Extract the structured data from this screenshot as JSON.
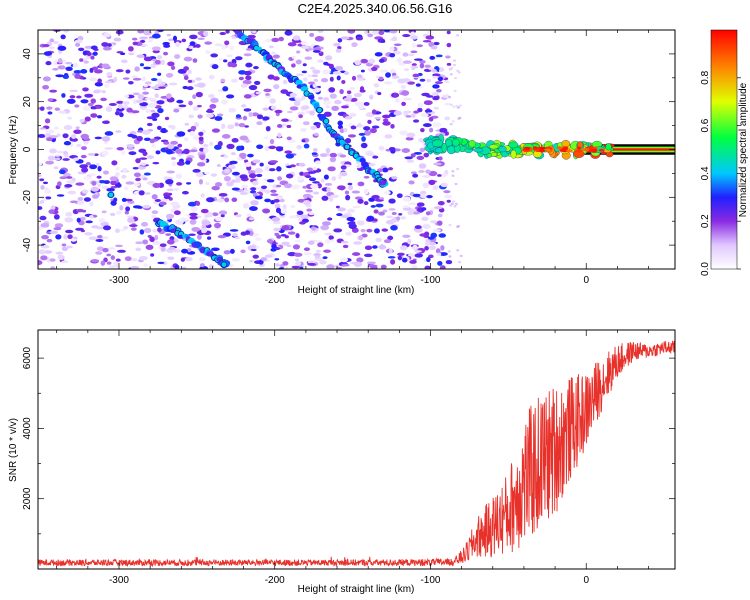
{
  "title": "C2E4.2025.340.06.56.G16",
  "chart_data": [
    {
      "type": "heatmap",
      "name": "spectrogram",
      "title": "C2E4.2025.340.06.56.G16",
      "xlabel": "Height of straight line (km)",
      "ylabel": "Frequency (Hz)",
      "xlim": [
        -352,
        57
      ],
      "ylim": [
        -50,
        50
      ],
      "xticks": [
        -300,
        -200,
        -100,
        0
      ],
      "yticks": [
        -40,
        -20,
        0,
        20,
        40
      ],
      "noise_region_x": [
        -352,
        -88
      ],
      "features": [
        {
          "name": "descending-trace-1",
          "points": [
            [
              -225,
              50
            ],
            [
              -210,
              42
            ],
            [
              -195,
              33
            ],
            [
              -180,
              25
            ],
            [
              -165,
              9
            ],
            [
              -155,
              2
            ],
            [
              -140,
              -8
            ],
            [
              -130,
              -14
            ]
          ]
        },
        {
          "name": "descending-trace-2",
          "points": [
            [
              -275,
              -30
            ],
            [
              -262,
              -35
            ],
            [
              -245,
              -42
            ],
            [
              -232,
              -48
            ]
          ]
        },
        {
          "name": "isolated-blob",
          "points": [
            [
              -305,
              -19
            ]
          ]
        },
        {
          "name": "carrier-line",
          "points": [
            [
              -100,
              3
            ],
            [
              -80,
              2
            ],
            [
              -60,
              0
            ],
            [
              -40,
              -1
            ],
            [
              -20,
              0
            ],
            [
              0,
              0
            ],
            [
              20,
              1
            ],
            [
              57,
              0
            ]
          ]
        }
      ],
      "colorbar": {
        "label": "Normalized spectral amplitude",
        "range": [
          0,
          1
        ],
        "ticks": [
          0.0,
          0.2,
          0.4,
          0.6,
          0.8
        ],
        "tick_labels": [
          "0.0",
          "0.2",
          "0.4",
          "0.6",
          "0.8"
        ],
        "stops": [
          {
            "value": 0.0,
            "color": "#ffffff"
          },
          {
            "value": 0.1,
            "color": "#e0c8ff"
          },
          {
            "value": 0.2,
            "color": "#8a2be2"
          },
          {
            "value": 0.3,
            "color": "#2020ff"
          },
          {
            "value": 0.4,
            "color": "#00c8ff"
          },
          {
            "value": 0.55,
            "color": "#00ff40"
          },
          {
            "value": 0.7,
            "color": "#e0ff00"
          },
          {
            "value": 0.85,
            "color": "#ff8000"
          },
          {
            "value": 1.0,
            "color": "#ff0000"
          }
        ]
      }
    },
    {
      "type": "line",
      "name": "snr",
      "xlabel": "Height of straight line (km)",
      "ylabel": "SNR (10 * v/v)",
      "xlim": [
        -352,
        57
      ],
      "ylim": [
        0,
        6800
      ],
      "xticks": [
        -300,
        -200,
        -100,
        0
      ],
      "yticks": [
        2000,
        4000,
        6000
      ],
      "series": [
        {
          "name": "SNR",
          "color": "#e8312b",
          "x": [
            -352,
            -300,
            -250,
            -200,
            -150,
            -100,
            -85,
            -78,
            -70,
            -60,
            -50,
            -40,
            -30,
            -20,
            -10,
            0,
            10,
            20,
            30,
            40,
            50,
            57
          ],
          "mean": [
            180,
            180,
            180,
            180,
            180,
            185,
            200,
            400,
            900,
            1200,
            1600,
            2500,
            3000,
            3400,
            4000,
            4500,
            5300,
            5900,
            6200,
            6200,
            6300,
            6300
          ],
          "amp": [
            90,
            90,
            90,
            90,
            90,
            100,
            110,
            250,
            600,
            900,
            1200,
            1900,
            2000,
            1900,
            1500,
            1100,
            800,
            500,
            300,
            200,
            200,
            200
          ]
        }
      ]
    }
  ]
}
